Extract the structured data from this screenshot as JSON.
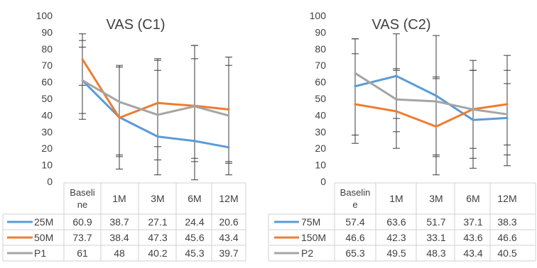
{
  "chart_data": [
    {
      "type": "line",
      "title": "VAS (C1)",
      "categories": [
        "Baseline",
        "1M",
        "3M",
        "6M",
        "12M"
      ],
      "category_labels": [
        [
          "Baseli",
          "ne"
        ],
        [
          "1M"
        ],
        [
          "3M"
        ],
        [
          "6M"
        ],
        [
          "12M"
        ]
      ],
      "ylim": [
        0,
        100
      ],
      "yticks": [
        0,
        10,
        20,
        30,
        40,
        50,
        60,
        70,
        80,
        90,
        100
      ],
      "grid": false,
      "legend_placement": "data-table-left",
      "series": [
        {
          "name": "25M",
          "color": "#5B9BD5",
          "values": [
            60.9,
            38.7,
            27.1,
            24.4,
            20.6
          ],
          "display": [
            "60.9",
            "38.7",
            "27.1",
            "24.4",
            "20.6"
          ]
        },
        {
          "name": "50M",
          "color": "#ED7D31",
          "values": [
            73.7,
            38.4,
            47.3,
            45.6,
            43.4
          ],
          "display": [
            "73.7",
            "38.4",
            "47.3",
            "45.6",
            "43.4"
          ]
        },
        {
          "name": "P1",
          "color": "#A5A5A5",
          "values": [
            61,
            48,
            40.2,
            45.3,
            39.7
          ],
          "display": [
            "61",
            "48",
            "40.2",
            "45.3",
            "39.7"
          ]
        }
      ],
      "error_bars": [
        {
          "series": "25M",
          "low": [
            41,
            16,
            13,
            12,
            12
          ],
          "high": [
            81,
            69,
            67,
            74,
            70
          ]
        },
        {
          "series": "50M",
          "low": [
            58,
            7.5,
            21,
            14,
            4
          ],
          "high": [
            89,
            69,
            74,
            82,
            75
          ]
        },
        {
          "series": "P1",
          "low": [
            37.5,
            15,
            4,
            1,
            11
          ],
          "high": [
            85,
            70,
            73,
            82,
            75
          ]
        }
      ]
    },
    {
      "type": "line",
      "title": "VAS (C2)",
      "categories": [
        "Baseline",
        "1M",
        "3M",
        "6M",
        "12M"
      ],
      "category_labels": [
        [
          "Baselin",
          "e"
        ],
        [
          "1M"
        ],
        [
          "3M"
        ],
        [
          "6M"
        ],
        [
          "12M"
        ]
      ],
      "ylim": [
        0,
        100
      ],
      "yticks": [
        0,
        10,
        20,
        30,
        40,
        50,
        60,
        70,
        80,
        90,
        100
      ],
      "grid": false,
      "legend_placement": "data-table-left",
      "series": [
        {
          "name": "75M",
          "color": "#5B9BD5",
          "values": [
            57.4,
            63.6,
            51.7,
            37.1,
            38.3
          ],
          "display": [
            "57.4",
            "63.6",
            "51.7",
            "37.1",
            "38.3"
          ]
        },
        {
          "name": "150M",
          "color": "#ED7D31",
          "values": [
            46.6,
            42.3,
            33.1,
            43.6,
            46.6
          ],
          "display": [
            "46.6",
            "42.3",
            "33.1",
            "43.6",
            "46.6"
          ]
        },
        {
          "name": "P2",
          "color": "#A5A5A5",
          "values": [
            65.3,
            49.5,
            48.3,
            43.4,
            40.5
          ],
          "display": [
            "65.3",
            "49.5",
            "48.3",
            "43.4",
            "40.5"
          ]
        }
      ],
      "error_bars": [
        {
          "series": "75M",
          "low": [
            28,
            38,
            16,
            14,
            16
          ],
          "high": [
            77,
            89,
            88,
            67,
            67
          ]
        },
        {
          "series": "150M",
          "low": [
            23,
            20,
            4,
            8,
            9.5
          ],
          "high": [
            86,
            67,
            62,
            73,
            76
          ]
        },
        {
          "series": "P2",
          "low": [
            28,
            30,
            15,
            20,
            22
          ],
          "high": [
            86,
            68,
            63,
            67,
            59
          ]
        }
      ]
    }
  ]
}
